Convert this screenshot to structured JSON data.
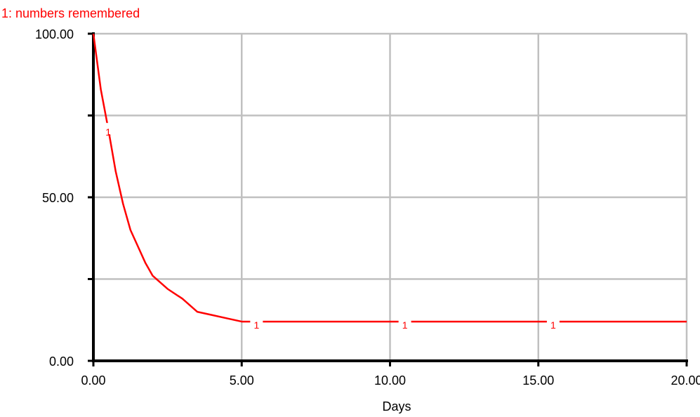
{
  "chart_data": {
    "type": "line",
    "title": "",
    "xlabel": "Days",
    "ylabel": "",
    "xlim": [
      0,
      20
    ],
    "ylim": [
      0,
      100
    ],
    "x_ticks": [
      0,
      5,
      10,
      15,
      20
    ],
    "x_tick_labels": [
      "0.00",
      "5.00",
      "10.00",
      "15.00",
      "20.00"
    ],
    "y_ticks": [
      0,
      25,
      50,
      75,
      100
    ],
    "y_tick_labels": [
      "0.00",
      "",
      "50.00",
      "",
      "100.00"
    ],
    "grid": true,
    "legend": "top-left",
    "series": [
      {
        "name": "1: numbers remembered",
        "marker_label": "1",
        "color": "#ff0000",
        "x": [
          0.0,
          0.25,
          0.5,
          0.75,
          1.0,
          1.25,
          1.5,
          1.75,
          2.0,
          2.5,
          3.0,
          3.5,
          4.0,
          4.5,
          5.0,
          10.0,
          15.0,
          20.0
        ],
        "y": [
          100,
          83,
          71,
          58,
          48,
          40,
          35,
          30,
          26,
          22,
          19,
          15,
          14,
          13,
          12,
          12,
          12,
          12
        ]
      }
    ],
    "marker_x": [
      0.5,
      5.5,
      10.5,
      15.5
    ]
  }
}
